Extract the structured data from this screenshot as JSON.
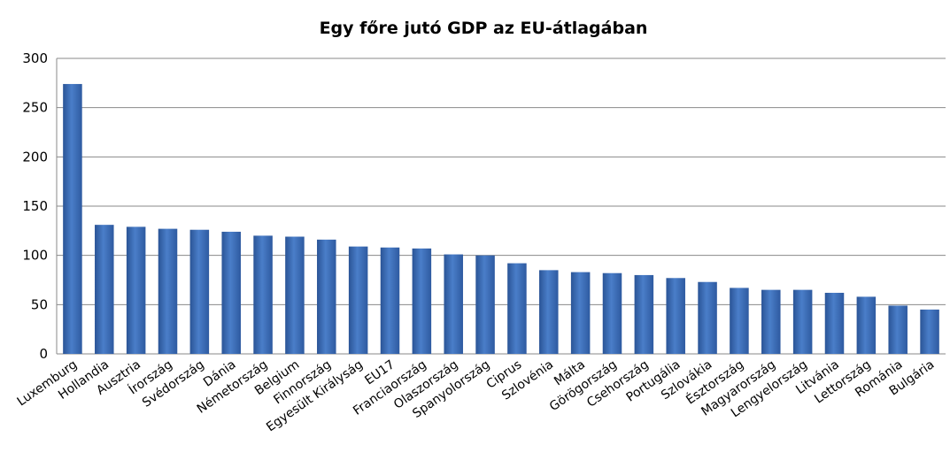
{
  "chart_data": {
    "type": "bar",
    "title": "Egy főre jutó GDP az EU-átlagában",
    "xlabel": "",
    "ylabel": "",
    "ylim": [
      0,
      300
    ],
    "yticks": [
      0,
      50,
      100,
      150,
      200,
      250,
      300
    ],
    "grid": true,
    "legend": "none",
    "bar_color": "#3f6fb3",
    "categories": [
      "Luxemburg",
      "Hollandia",
      "Ausztria",
      "Írország",
      "Svédország",
      "Dánia",
      "Németország",
      "Belgium",
      "Finnország",
      "Egyesült Királyság",
      "EU17",
      "Franciaország",
      "Olaszország",
      "Spanyolország",
      "Ciprus",
      "Szlovénia",
      "Málta",
      "Görögország",
      "Csehország",
      "Portugália",
      "Szlovákia",
      "Észtország",
      "Magyarország",
      "Lengyelország",
      "Litvánia",
      "Lettország",
      "Románia",
      "Bulgária"
    ],
    "values": [
      274,
      131,
      129,
      127,
      126,
      124,
      120,
      119,
      116,
      109,
      108,
      107,
      101,
      100,
      92,
      85,
      83,
      82,
      80,
      77,
      73,
      67,
      65,
      65,
      62,
      58,
      49,
      45
    ]
  }
}
